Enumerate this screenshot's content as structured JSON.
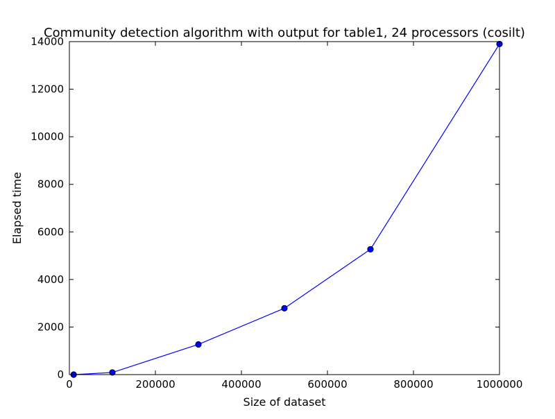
{
  "chart_data": {
    "type": "line",
    "title": "Community detection algorithm with output for table1, 24 processors (cosilt)",
    "xlabel": "Size of dataset",
    "ylabel": "Elapsed time",
    "xlim": [
      0,
      1000000
    ],
    "ylim": [
      0,
      14000
    ],
    "xticks": [
      0,
      200000,
      400000,
      600000,
      800000,
      1000000
    ],
    "yticks": [
      0,
      2000,
      4000,
      6000,
      8000,
      10000,
      12000,
      14000
    ],
    "grid": false,
    "legend": "none",
    "series": [
      {
        "color": "#0000ff",
        "marker": "circle",
        "x": [
          10000,
          100000,
          300000,
          500000,
          700000,
          1000000
        ],
        "y": [
          0,
          90,
          1270,
          2790,
          5270,
          13900
        ]
      }
    ]
  }
}
